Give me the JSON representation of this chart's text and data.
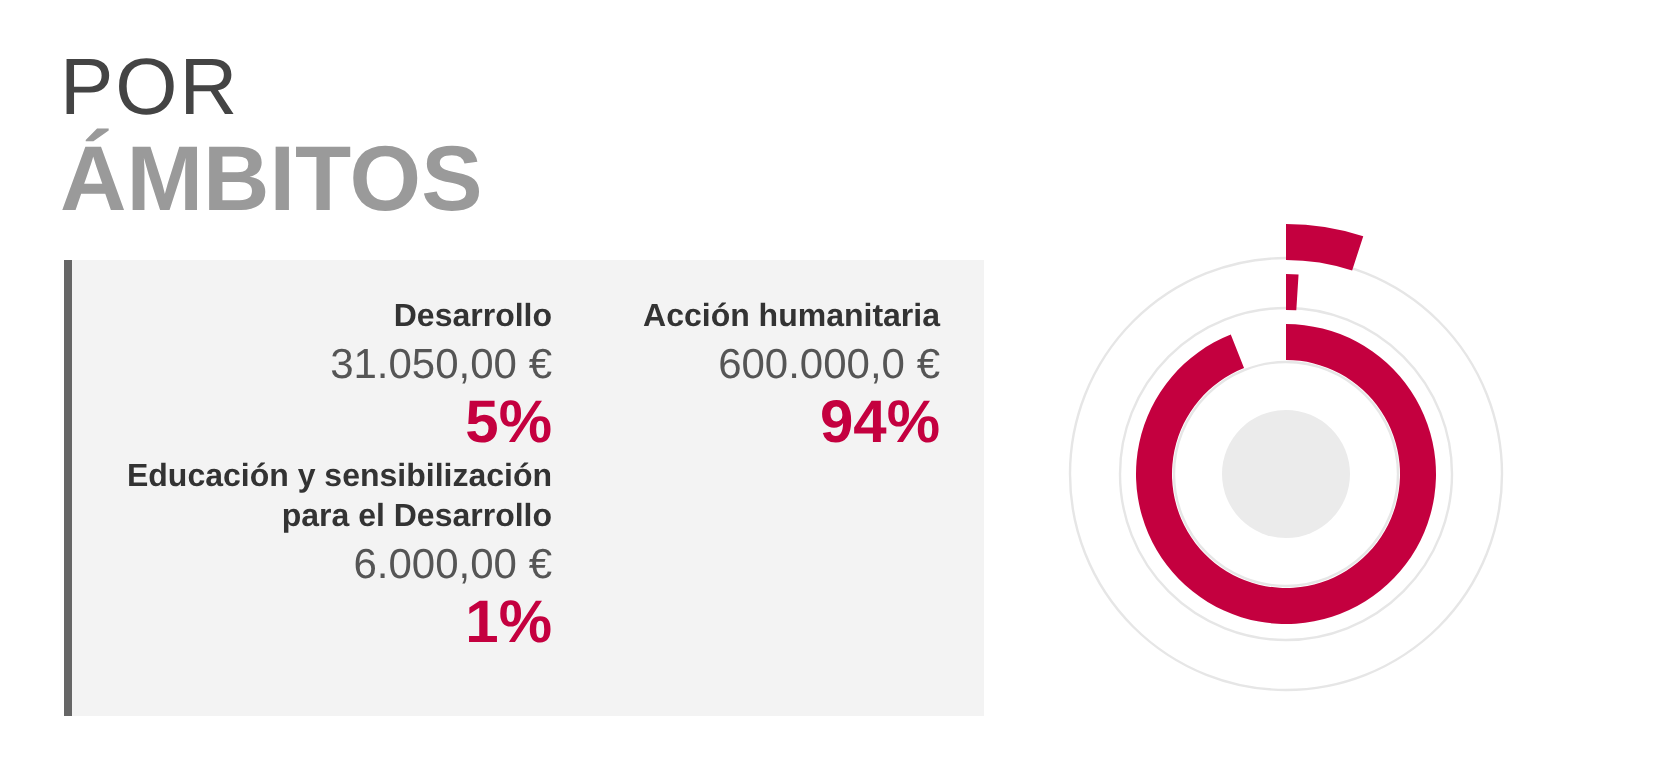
{
  "chart_data": {
    "type": "other",
    "title": "POR",
    "subtitle": "ÁMBITOS",
    "categories": [
      "Desarrollo",
      "Acción humanitaria",
      "Educación y sensibilización para el Desarrollo"
    ],
    "values": [
      5,
      94,
      1
    ],
    "value_labels": [
      "5%",
      "94%",
      "1%"
    ],
    "annotations": [
      "31.050,00 €",
      "600.000,0 €",
      "6.000,00 €"
    ],
    "colors": [
      "#c4003f",
      "#c4003f",
      "#c4003f"
    ]
  }
}
